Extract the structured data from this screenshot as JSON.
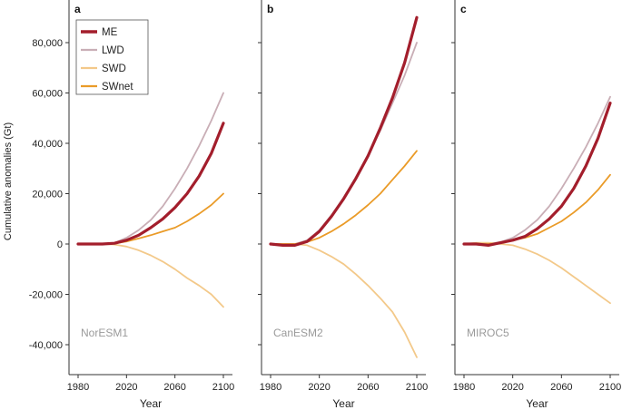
{
  "figure": {
    "ylabel": "Cumulative anomalies (Gt)",
    "xlabel": "Year",
    "legend": [
      {
        "name": "ME",
        "color": "#a31e2c",
        "weight": "thick"
      },
      {
        "name": "LWD",
        "color": "#c9aeb6",
        "weight": "thin"
      },
      {
        "name": "SWD",
        "color": "#f3c98a",
        "weight": "thin"
      },
      {
        "name": "SWnet",
        "color": "#ea9b28",
        "weight": "thin"
      }
    ],
    "legend_position": "top-left of panel a"
  },
  "chart_data": [
    {
      "type": "line",
      "panel": "a",
      "model": "NorESM1",
      "xlabel": "Year",
      "ylabel": "Cumulative anomalies (Gt)",
      "xlim": [
        1975,
        2105
      ],
      "ylim": [
        -47000,
        92000
      ],
      "x": [
        1980,
        1990,
        2000,
        2010,
        2020,
        2030,
        2040,
        2050,
        2060,
        2070,
        2080,
        2090,
        2100
      ],
      "series": [
        {
          "name": "ME",
          "values": [
            0,
            0,
            0,
            300,
            1500,
            3500,
            6500,
            10000,
            14500,
            20000,
            27000,
            36000,
            48000
          ]
        },
        {
          "name": "LWD",
          "values": [
            0,
            0,
            0,
            400,
            2500,
            5500,
            9500,
            15000,
            22000,
            30000,
            39000,
            49000,
            60000
          ]
        },
        {
          "name": "SWD",
          "values": [
            0,
            0,
            0,
            -200,
            -1000,
            -2500,
            -4500,
            -7000,
            -10000,
            -13500,
            -16500,
            -20000,
            -25000
          ]
        },
        {
          "name": "SWnet",
          "values": [
            0,
            0,
            0,
            200,
            1000,
            2200,
            3500,
            5000,
            6500,
            9000,
            12000,
            15500,
            20000
          ]
        }
      ],
      "xticks": [
        "1980",
        "2020",
        "2060",
        "2100"
      ],
      "yticks": [
        "80,000",
        "60,000",
        "40,000",
        "20,000",
        "0",
        "-20,000",
        "-40,000"
      ]
    },
    {
      "type": "line",
      "panel": "b",
      "model": "CanESM2",
      "xlabel": "Year",
      "xlim": [
        1975,
        2105
      ],
      "ylim": [
        -47000,
        92000
      ],
      "x": [
        1980,
        1990,
        2000,
        2010,
        2020,
        2030,
        2040,
        2050,
        2060,
        2070,
        2080,
        2090,
        2100
      ],
      "series": [
        {
          "name": "ME",
          "values": [
            0,
            -500,
            -500,
            1000,
            5000,
            11000,
            18000,
            26000,
            35000,
            46000,
            58000,
            72000,
            90000
          ]
        },
        {
          "name": "LWD",
          "values": [
            0,
            0,
            0,
            1500,
            5500,
            11500,
            18500,
            26500,
            35500,
            45000,
            56000,
            67000,
            80000
          ]
        },
        {
          "name": "SWD",
          "values": [
            0,
            0,
            0,
            -500,
            -2500,
            -5000,
            -8000,
            -12000,
            -16500,
            -21500,
            -27000,
            -35000,
            -45000
          ]
        },
        {
          "name": "SWnet",
          "values": [
            0,
            0,
            0,
            800,
            2500,
            5000,
            8000,
            11500,
            15500,
            20000,
            25500,
            31000,
            37000
          ]
        }
      ],
      "xticks": [
        "1980",
        "2020",
        "2060",
        "2100"
      ]
    },
    {
      "type": "line",
      "panel": "c",
      "model": "MIROC5",
      "xlabel": "Year",
      "xlim": [
        1975,
        2105
      ],
      "ylim": [
        -47000,
        92000
      ],
      "x": [
        1980,
        1990,
        2000,
        2010,
        2020,
        2030,
        2040,
        2050,
        2060,
        2070,
        2080,
        2090,
        2100
      ],
      "series": [
        {
          "name": "ME",
          "values": [
            0,
            0,
            -500,
            500,
            1500,
            3000,
            6000,
            10000,
            15000,
            22000,
            31000,
            42000,
            56000
          ]
        },
        {
          "name": "LWD",
          "values": [
            0,
            0,
            0,
            800,
            2500,
            5500,
            9500,
            15000,
            22000,
            30000,
            38500,
            48000,
            58500
          ]
        },
        {
          "name": "SWD",
          "values": [
            0,
            500,
            500,
            0,
            -500,
            -2000,
            -4000,
            -6500,
            -9500,
            -13000,
            -16500,
            -20000,
            -23500
          ]
        },
        {
          "name": "SWnet",
          "values": [
            0,
            0,
            0,
            500,
            1500,
            2500,
            4000,
            6500,
            9000,
            12500,
            16500,
            21500,
            27500
          ]
        }
      ],
      "xticks": [
        "1980",
        "2020",
        "2060",
        "2100"
      ]
    }
  ]
}
